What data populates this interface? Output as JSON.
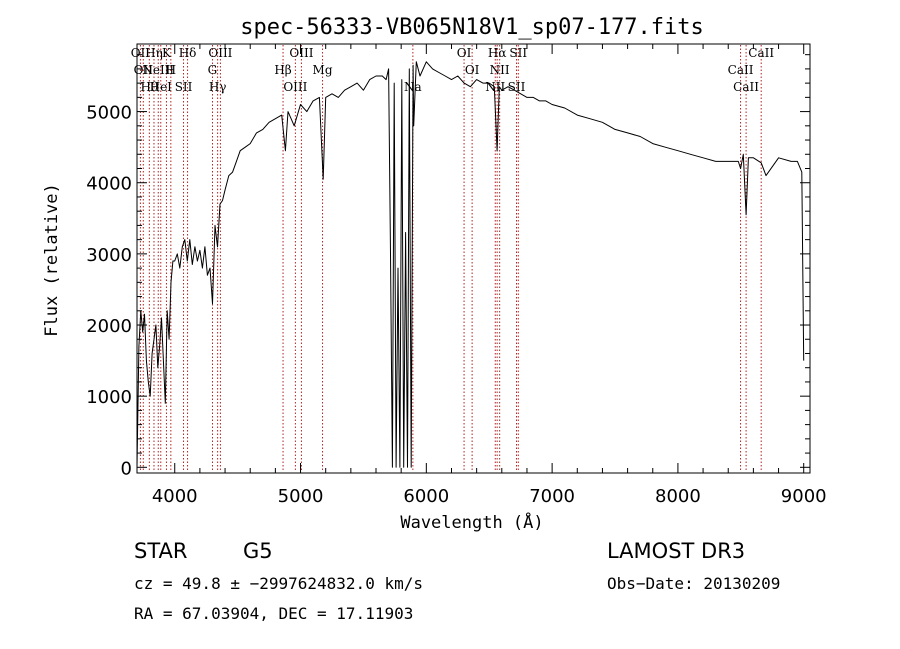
{
  "chart_data": {
    "type": "line",
    "title": "spec-56333-VB065N18V1_sp07-177.fits",
    "xlabel": "Wavelength (Å)",
    "ylabel": "Flux (relative)",
    "xlim": [
      3700,
      9050
    ],
    "ylim": [
      -80,
      5950
    ],
    "xticks": [
      4000,
      5000,
      6000,
      7000,
      8000,
      9000
    ],
    "yticks": [
      0,
      1000,
      2000,
      3000,
      4000,
      5000
    ],
    "grid": false,
    "series": [
      {
        "x": [
          3700,
          3715,
          3730,
          3745,
          3760,
          3775,
          3790,
          3805,
          3820,
          3835,
          3850,
          3865,
          3880,
          3895,
          3910,
          3925,
          3940,
          3955,
          3970,
          3985,
          4000,
          4020,
          4040,
          4060,
          4080,
          4100,
          4120,
          4140,
          4160,
          4180,
          4200,
          4220,
          4240,
          4260,
          4280,
          4300,
          4320,
          4340,
          4360,
          4380,
          4400,
          4430,
          4460,
          4490,
          4520,
          4560,
          4600,
          4650,
          4700,
          4750,
          4800,
          4850,
          4880,
          4900,
          4950,
          5000,
          5050,
          5100,
          5150,
          5180,
          5200,
          5250,
          5300,
          5350,
          5400,
          5450,
          5500,
          5550,
          5600,
          5650,
          5680,
          5700,
          5715,
          5730,
          5745,
          5760,
          5775,
          5790,
          5805,
          5820,
          5835,
          5850,
          5865,
          5880,
          5895,
          5900,
          5920,
          5950,
          6000,
          6050,
          6100,
          6150,
          6200,
          6250,
          6300,
          6350,
          6400,
          6450,
          6500,
          6540,
          6563,
          6580,
          6600,
          6650,
          6700,
          6750,
          6800,
          6850,
          6900,
          6950,
          7000,
          7100,
          7200,
          7300,
          7400,
          7500,
          7600,
          7700,
          7800,
          7900,
          8000,
          8100,
          8200,
          8300,
          8400,
          8480,
          8498,
          8520,
          8542,
          8560,
          8600,
          8662,
          8700,
          8800,
          8900,
          8950,
          8985,
          9000
        ],
        "y": [
          0,
          1700,
          2200,
          1900,
          2150,
          1500,
          1200,
          1000,
          1600,
          1800,
          2000,
          1400,
          1700,
          2100,
          1500,
          900,
          2200,
          1800,
          2600,
          2900,
          2900,
          3000,
          2800,
          3100,
          3200,
          2900,
          3200,
          2850,
          3100,
          2900,
          3050,
          2800,
          3100,
          2700,
          2800,
          2300,
          3400,
          3100,
          3700,
          3750,
          3900,
          4100,
          4150,
          4300,
          4450,
          4500,
          4550,
          4700,
          4750,
          4850,
          4900,
          4950,
          4450,
          5000,
          4800,
          5100,
          5000,
          5150,
          5200,
          4050,
          5200,
          5250,
          5200,
          5300,
          5350,
          5400,
          5300,
          5450,
          5500,
          5500,
          5450,
          5600,
          3000,
          0,
          5400,
          0,
          2800,
          0,
          5450,
          0,
          3300,
          0,
          5600,
          0,
          5650,
          4800,
          5700,
          5500,
          5700,
          5600,
          5550,
          5500,
          5450,
          5500,
          5400,
          5350,
          5450,
          5400,
          5400,
          5350,
          4450,
          5350,
          5300,
          5350,
          5300,
          5250,
          5200,
          5200,
          5150,
          5150,
          5100,
          5050,
          4950,
          4900,
          4850,
          4750,
          4700,
          4650,
          4550,
          4500,
          4450,
          4400,
          4350,
          4300,
          4300,
          4300,
          4200,
          4400,
          3550,
          4350,
          4350,
          4280,
          4100,
          4350,
          4300,
          4300,
          4150,
          1500
        ]
      }
    ],
    "lines": [
      {
        "x": 3727,
        "labels": [
          "OII"
        ]
      },
      {
        "x": 3750,
        "labels": [
          "OII"
        ]
      },
      {
        "x": 3798,
        "labels": [
          "Hθ"
        ]
      },
      {
        "x": 3835,
        "labels": [
          "Hη"
        ]
      },
      {
        "x": 3869,
        "labels": [
          "NeIII"
        ]
      },
      {
        "x": 3889,
        "labels": [
          "HeI"
        ]
      },
      {
        "x": 3934,
        "labels": [
          "K"
        ]
      },
      {
        "x": 3969,
        "labels": [
          "H"
        ]
      },
      {
        "x": 4070,
        "labels": [
          "SII"
        ]
      },
      {
        "x": 4102,
        "labels": [
          "Hδ"
        ]
      },
      {
        "x": 4300,
        "labels": [
          "G"
        ]
      },
      {
        "x": 4341,
        "labels": [
          "Hγ"
        ]
      },
      {
        "x": 4363,
        "labels": [
          "OIII"
        ]
      },
      {
        "x": 4861,
        "labels": [
          "Hβ"
        ]
      },
      {
        "x": 4959,
        "labels": [
          "OIII"
        ]
      },
      {
        "x": 5007,
        "labels": [
          "OIII"
        ]
      },
      {
        "x": 5175,
        "labels": [
          "Mg"
        ]
      },
      {
        "x": 5893,
        "labels": [
          "Na"
        ]
      },
      {
        "x": 6300,
        "labels": [
          "OI"
        ]
      },
      {
        "x": 6364,
        "labels": [
          "OI"
        ]
      },
      {
        "x": 6548,
        "labels": [
          "NII"
        ]
      },
      {
        "x": 6563,
        "labels": [
          "Hα"
        ]
      },
      {
        "x": 6583,
        "labels": [
          "NII"
        ]
      },
      {
        "x": 6717,
        "labels": [
          "SII"
        ]
      },
      {
        "x": 6731,
        "labels": [
          "SII"
        ]
      },
      {
        "x": 8498,
        "labels": [
          "CaII"
        ]
      },
      {
        "x": 8542,
        "labels": [
          "CaII"
        ]
      },
      {
        "x": 8662,
        "labels": [
          "CaII"
        ]
      }
    ],
    "colors": {
      "spectrum": "#000000",
      "lines": "#b22222",
      "axes": "#000000"
    }
  },
  "info": {
    "class_label": "STAR",
    "subclass": "G5",
    "survey": "LAMOST DR3",
    "cz_line": "cz = 49.8 ± −2997624832.0 km/s",
    "obs_date_line": "Obs−Date: 20130209",
    "coords_line": "RA =  67.03904, DEC =  17.11903"
  }
}
